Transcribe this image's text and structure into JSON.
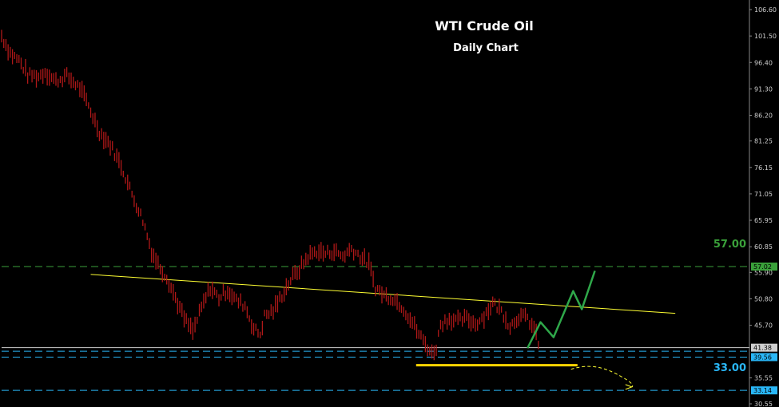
{
  "chart_data": {
    "type": "candlestick",
    "title": "WTI Crude Oil",
    "subtitle": "Daily Chart",
    "ylim": [
      30.55,
      107.5
    ],
    "y_ticks": [
      106.6,
      101.5,
      96.4,
      91.3,
      86.2,
      81.25,
      76.15,
      71.05,
      65.95,
      60.85,
      55.9,
      50.8,
      45.7,
      35.55,
      30.55
    ],
    "price_series": {
      "name": "",
      "color": "#b01818",
      "anchors": [
        [
          0,
          101.5
        ],
        [
          4,
          98.2
        ],
        [
          8,
          96.8
        ],
        [
          12,
          94.0
        ],
        [
          17,
          93.7
        ],
        [
          20,
          94.6
        ],
        [
          25,
          92.8
        ],
        [
          30,
          93.8
        ],
        [
          36,
          91.5
        ],
        [
          40,
          88.0
        ],
        [
          45,
          83.0
        ],
        [
          50,
          80.5
        ],
        [
          55,
          76.5
        ],
        [
          60,
          71.0
        ],
        [
          65,
          66.0
        ],
        [
          69,
          60.0
        ],
        [
          72,
          57.5
        ],
        [
          76,
          55.0
        ],
        [
          80,
          51.0
        ],
        [
          84,
          47.0
        ],
        [
          88,
          44.5
        ],
        [
          92,
          49.0
        ],
        [
          96,
          53.0
        ],
        [
          100,
          51.0
        ],
        [
          104,
          52.5
        ],
        [
          108,
          50.5
        ],
        [
          112,
          49.5
        ],
        [
          116,
          45.0
        ],
        [
          119,
          44.0
        ],
        [
          121,
          47.5
        ],
        [
          125,
          48.5
        ],
        [
          129,
          51.5
        ],
        [
          133,
          54.5
        ],
        [
          137,
          56.5
        ],
        [
          141,
          59.0
        ],
        [
          145,
          60.0
        ],
        [
          149,
          59.5
        ],
        [
          153,
          60.0
        ],
        [
          157,
          59.0
        ],
        [
          161,
          60.5
        ],
        [
          165,
          59.0
        ],
        [
          169,
          57.5
        ],
        [
          172,
          53.0
        ],
        [
          176,
          51.5
        ],
        [
          180,
          51.0
        ],
        [
          184,
          49.5
        ],
        [
          188,
          47.0
        ],
        [
          192,
          44.0
        ],
        [
          196,
          41.5
        ],
        [
          198,
          40.2
        ],
        [
          200,
          41.5
        ],
        [
          202,
          46.0
        ],
        [
          206,
          47.0
        ],
        [
          210,
          46.5
        ],
        [
          214,
          47.0
        ],
        [
          218,
          46.0
        ],
        [
          222,
          47.5
        ],
        [
          226,
          50.0
        ],
        [
          230,
          48.5
        ],
        [
          234,
          45.5
        ],
        [
          238,
          47.5
        ],
        [
          242,
          47.0
        ],
        [
          245,
          45.0
        ],
        [
          248,
          41.0
        ]
      ]
    },
    "levels": [
      {
        "value": 57.02,
        "label": "57.00",
        "tag": "57.02",
        "color": "#3aa13a",
        "style": "dashed"
      },
      {
        "value": 41.38,
        "label": "",
        "tag": "41.38",
        "color": "#cfcfcf",
        "style": "solid"
      },
      {
        "value": 39.56,
        "label": "",
        "tag": "39.56",
        "color": "#29b6f6",
        "style": "dashed"
      },
      {
        "value": 33.14,
        "label": "33.00",
        "tag": "33.14",
        "color": "#29b6f6",
        "style": "dashed"
      }
    ],
    "trendline": {
      "color": "#ffff33",
      "from": [
        41,
        55.5
      ],
      "to": [
        310,
        48.0
      ]
    },
    "support_zone": {
      "color": "#ffd400",
      "value": 38.0,
      "from_bar": 190,
      "to_bar": 265
    },
    "projection": {
      "color": "#2fa84a",
      "points": [
        [
          242,
          41.3
        ],
        [
          248,
          46.3
        ],
        [
          254,
          43.4
        ],
        [
          263,
          52.3
        ],
        [
          267,
          48.8
        ],
        [
          273,
          56.2
        ]
      ]
    },
    "dashed_projection": {
      "color": "#ffff33",
      "points": [
        [
          262,
          37.2
        ],
        [
          272,
          37.8
        ],
        [
          282,
          36.5
        ],
        [
          290,
          33.8
        ]
      ]
    }
  }
}
